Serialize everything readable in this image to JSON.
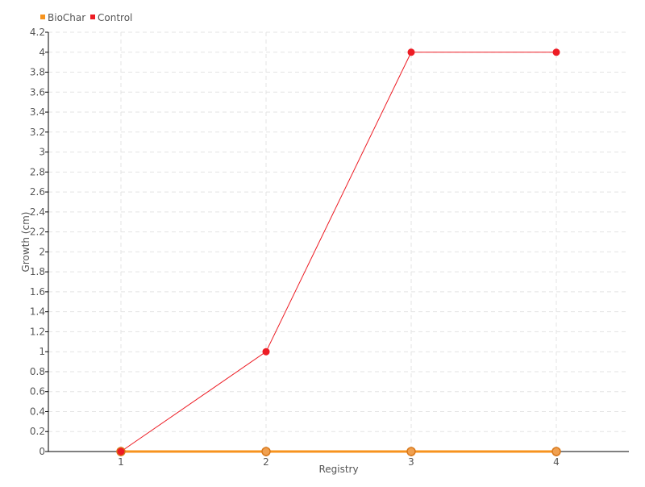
{
  "chart_data": {
    "type": "line",
    "title": "",
    "xlabel": "Registry",
    "ylabel": "Growth (cm)",
    "categories": [
      "1",
      "2",
      "3",
      "4"
    ],
    "ylim": [
      0,
      4.2
    ],
    "yticks": [
      "0",
      "0.2",
      "0.4",
      "0.6",
      "0.8",
      "1",
      "1.2",
      "1.4",
      "1.6",
      "1.8",
      "2",
      "2.2",
      "2.4",
      "2.6",
      "2.8",
      "3",
      "3.2",
      "3.4",
      "3.6",
      "3.8",
      "4",
      "4.2"
    ],
    "grid": true,
    "legend_position": "top-left",
    "series": [
      {
        "name": "BioChar",
        "color": "#f7931e",
        "values": [
          0,
          0,
          0,
          0
        ]
      },
      {
        "name": "Control",
        "color": "#ed1c24",
        "values": [
          0,
          1,
          4,
          4
        ]
      }
    ]
  }
}
